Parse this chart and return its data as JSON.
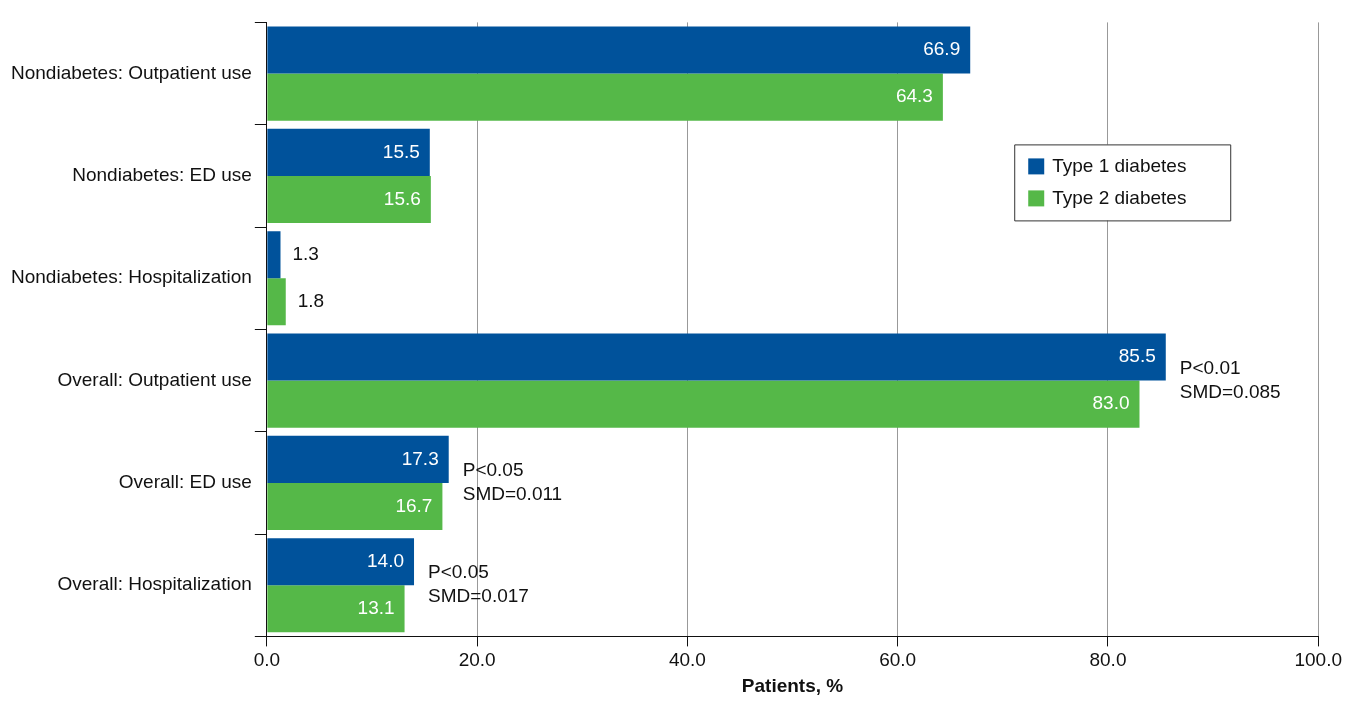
{
  "chart_data": {
    "type": "bar",
    "orientation": "horizontal",
    "xlabel": "Patients, %",
    "categories": [
      "Nondiabetes: Outpatient use",
      "Nondiabetes: ED use",
      "Nondiabetes: Hospitalization",
      "Overall: Outpatient use",
      "Overall: ED use",
      "Overall: Hospitalization"
    ],
    "series": [
      {
        "name": "Type 1 diabetes",
        "color": "#00529b",
        "values": [
          66.9,
          15.5,
          1.3,
          85.5,
          17.3,
          14.0
        ],
        "value_labels": [
          "66.9",
          "15.5",
          "1.3",
          "85.5",
          "17.3",
          "14.0"
        ]
      },
      {
        "name": "Type 2 diabetes",
        "color": "#55b848",
        "values": [
          64.3,
          15.6,
          1.8,
          83.0,
          16.7,
          13.1
        ],
        "value_labels": [
          "64.3",
          "15.6",
          "1.8",
          "83.0",
          "16.7",
          "13.1"
        ]
      }
    ],
    "xlim": [
      0,
      100
    ],
    "xticks": [
      {
        "value": 0,
        "label": "0.0"
      },
      {
        "value": 20,
        "label": "20.0"
      },
      {
        "value": 40,
        "label": "40.0"
      },
      {
        "value": 60,
        "label": "60.0"
      },
      {
        "value": 80,
        "label": "80.0"
      },
      {
        "value": 100,
        "label": "100.0"
      }
    ],
    "grid": "x",
    "legend": "top right",
    "annotations": [
      {
        "text": "P<0.01\nSMD=0.085",
        "x": 85.5,
        "y": "Overall: Outpatient use"
      },
      {
        "text": "P<0.05\nSMD=0.011",
        "x": 17.3,
        "y": "Overall: ED use"
      },
      {
        "text": "P<0.05\nSMD=0.017",
        "x": 14.0,
        "y": "Overall: Hospitalization"
      }
    ]
  }
}
